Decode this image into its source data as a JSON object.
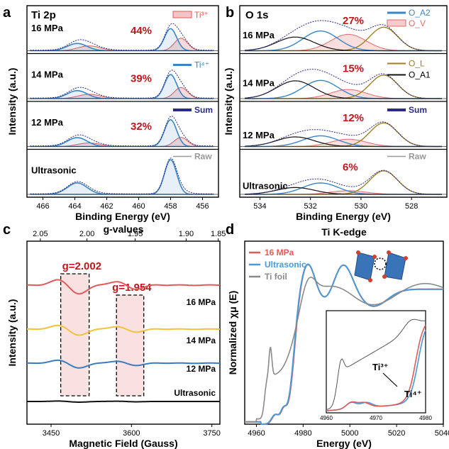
{
  "chart_data": [
    {
      "panel": "a",
      "type": "line",
      "title": "Ti 2p",
      "xlabel": "Binding Energy (eV)",
      "ylabel": "Intensity (a.u.)",
      "xlim": [
        467,
        455
      ],
      "xticks": [
        466,
        464,
        462,
        460,
        458,
        456
      ],
      "stacked_panels": [
        {
          "label": "16 MPa",
          "ti3_percent": "44%"
        },
        {
          "label": "14 MPa",
          "ti3_percent": "39%"
        },
        {
          "label": "12 MPa",
          "ti3_percent": "32%"
        },
        {
          "label": "Ultrasonic",
          "ti3_percent": ""
        }
      ],
      "legend": [
        "Ti³⁺",
        "Ti⁴⁺",
        "Sum",
        "Raw"
      ],
      "peaks": {
        "ti4_2p3": 458.0,
        "ti3_2p3": 457.4,
        "ti4_2p1": 463.9,
        "ti3_2p1": 463.1
      }
    },
    {
      "panel": "b",
      "type": "line",
      "title": "O 1s",
      "xlabel": "Binding Energy (eV)",
      "ylabel": "Intensity (a.u.)",
      "xlim": [
        534.8,
        526.6
      ],
      "xticks": [
        534,
        532,
        530,
        528
      ],
      "stacked_panels": [
        {
          "label": "16 MPa",
          "ov_percent": "27%"
        },
        {
          "label": "14 MPa",
          "ov_percent": "15%"
        },
        {
          "label": "12 MPa",
          "ov_percent": "12%"
        },
        {
          "label": "Ultrasonic",
          "ov_percent": "6%"
        }
      ],
      "legend": [
        "O_A2",
        "O_V",
        "O_L",
        "O_A1",
        "Sum",
        "Raw"
      ],
      "peaks": {
        "O_L": 529.1,
        "O_V": 530.4,
        "O_A2": 531.5,
        "O_A1": 532.6
      }
    },
    {
      "panel": "c",
      "type": "line",
      "xlabel": "Magnetic Field (Gauss)",
      "x2label": "g-values",
      "ylabel": "Intensity (a.u.)",
      "xlim": [
        3405,
        3765
      ],
      "xticks": [
        3450,
        3600,
        3750
      ],
      "x2ticks": [
        "2.05",
        "2.00",
        "1.95",
        "1.90",
        "1.85"
      ],
      "x2tick_fields": [
        3430,
        3517,
        3607,
        3702,
        3762
      ],
      "annotations": [
        "g=2.002",
        "g=1.954"
      ],
      "series": [
        {
          "name": "16 MPa",
          "color": "#e05a5a"
        },
        {
          "name": "14 MPa",
          "color": "#f2c23a"
        },
        {
          "name": "12 MPa",
          "color": "#3a7cc0"
        },
        {
          "name": "Ultrasonic",
          "color": "#111111"
        }
      ]
    },
    {
      "panel": "d",
      "type": "line",
      "title": "Ti K-edge",
      "xlabel": "Energy (eV)",
      "ylabel": "Normalized χμ (E)",
      "xlim": [
        4955,
        5040
      ],
      "xticks": [
        4960,
        4980,
        5000,
        5020,
        5040
      ],
      "series": [
        {
          "name": "16 MPa",
          "color": "#e05a5a"
        },
        {
          "name": "Ultrasonic",
          "color": "#4a9ad8"
        },
        {
          "name": "Ti foil",
          "color": "#8a8a8a"
        }
      ],
      "inset": {
        "xlim": [
          4960,
          4980
        ],
        "xticks": [
          4960,
          4970,
          4980
        ],
        "annotations": [
          "Ti³⁺",
          "Ti⁴⁺"
        ]
      }
    }
  ],
  "colors": {
    "ti3": "#e05a5a",
    "ti4": "#3a85c8",
    "sum": "#2a2a8a",
    "raw": "#999999",
    "OL": "#a08020",
    "OA1": "#111111",
    "OV": "#e46a6a",
    "OA2": "#3a85c8",
    "pct": "#c0161c"
  },
  "labels": {
    "panel_a": "a",
    "panel_b": "b",
    "panel_c": "c",
    "panel_d": "d"
  }
}
